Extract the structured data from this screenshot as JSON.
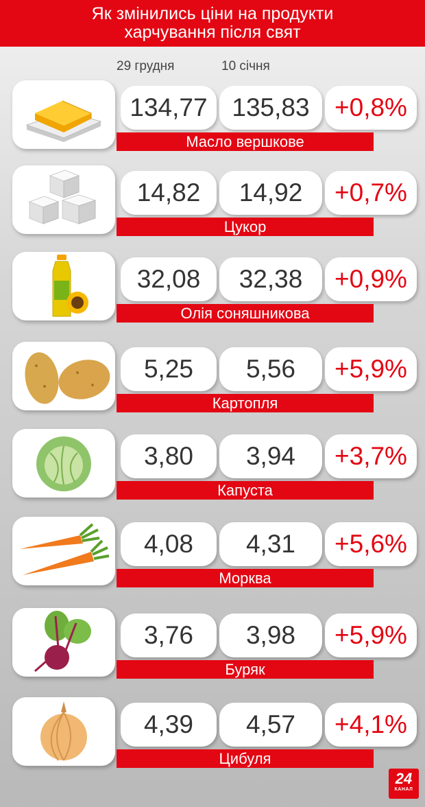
{
  "header": {
    "line1": "Як змінились ціни на продукти",
    "line2": "харчування після свят"
  },
  "columns": {
    "date1": "29 грудня",
    "date2": "10 січня"
  },
  "products": [
    {
      "name": "Масло вершкове",
      "before": "134,77",
      "after": "135,83",
      "change": "+0,8%",
      "icon": "butter-icon"
    },
    {
      "name": "Цукор",
      "before": "14,82",
      "after": "14,92",
      "change": "+0,7%",
      "icon": "sugar-icon"
    },
    {
      "name": "Олія соняшникова",
      "before": "32,08",
      "after": "32,38",
      "change": "+0,9%",
      "icon": "oil-bottle-icon"
    },
    {
      "name": "Картопля",
      "before": "5,25",
      "after": "5,56",
      "change": "+5,9%",
      "icon": "potato-icon"
    },
    {
      "name": "Капуста",
      "before": "3,80",
      "after": "3,94",
      "change": "+3,7%",
      "icon": "cabbage-icon"
    },
    {
      "name": "Морква",
      "before": "4,08",
      "after": "4,31",
      "change": "+5,6%",
      "icon": "carrot-icon"
    },
    {
      "name": "Буряк",
      "before": "3,76",
      "after": "3,98",
      "change": "+5,9%",
      "icon": "beet-icon"
    },
    {
      "name": "Цибуля",
      "before": "4,39",
      "after": "4,57",
      "change": "+4,1%",
      "icon": "onion-icon"
    }
  ],
  "logo": {
    "number": "24",
    "caption": "КАНАЛ"
  },
  "colors": {
    "accent": "#e30613",
    "text": "#333333"
  }
}
